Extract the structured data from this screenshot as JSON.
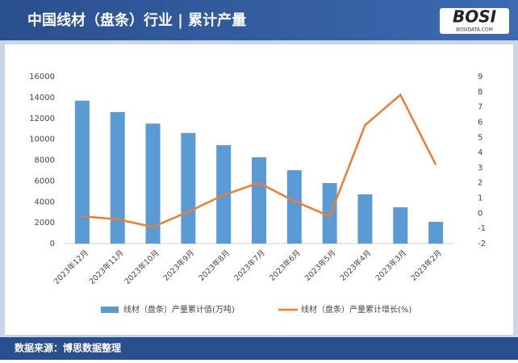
{
  "header": {
    "title": "中国线材（盘条）行业 | 累计产量",
    "logo": "BOSI",
    "logo_sub": "BOSIDATA.COM"
  },
  "chart_data": {
    "type": "bar-line",
    "categories": [
      "2023年12月",
      "2023年11月",
      "2023年10月",
      "2023年9月",
      "2023年8月",
      "2023年7月",
      "2023年6月",
      "2023年5月",
      "2023年4月",
      "2023年3月",
      "2023年2月"
    ],
    "series": [
      {
        "name": "线材（盘条）产量累计值(万吨)",
        "type": "bar",
        "color": "#5b9bd5",
        "values": [
          13700,
          12600,
          11500,
          10600,
          9430,
          8270,
          7030,
          5800,
          4720,
          3480,
          2090
        ]
      },
      {
        "name": "线材（盘条）产量累计增长(%)",
        "type": "line",
        "axis": "y2",
        "color": "#ed7d31",
        "values": [
          -0.2,
          -0.4,
          -0.9,
          0.1,
          1.2,
          2.0,
          0.8,
          -0.2,
          5.8,
          7.8,
          3.2
        ]
      }
    ],
    "ylim": [
      0,
      16000
    ],
    "yticks": [
      0,
      2000,
      4000,
      6000,
      8000,
      10000,
      12000,
      14000,
      16000
    ],
    "y2lim": [
      -2,
      9
    ],
    "y2ticks": [
      -2,
      -1,
      0,
      1,
      2,
      3,
      4,
      5,
      6,
      7,
      8,
      9
    ],
    "legend": "bottom"
  },
  "footer": {
    "source": "数据来源：博思数据整理"
  }
}
